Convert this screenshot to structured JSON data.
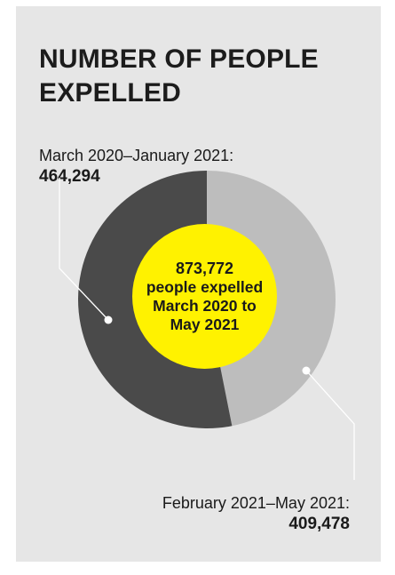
{
  "title": "NUMBER OF PEOPLE EXPELLED",
  "colors": {
    "panel": "#e6e6e6",
    "seg_first": "#4a4a4a",
    "seg_second": "#bdbdbd",
    "center": "#fff200",
    "text": "#1c1c1c"
  },
  "chart_data": {
    "type": "pie",
    "title": "NUMBER OF PEOPLE EXPELLED",
    "donut": true,
    "slices": [
      {
        "label": "March 2020–January 2021:",
        "value": 464294,
        "value_text": "464,294",
        "color": "#4a4a4a"
      },
      {
        "label": "February 2021–May 2021:",
        "value": 409478,
        "value_text": "409,478",
        "color": "#bdbdbd"
      }
    ],
    "center_text": {
      "line1": "873,772",
      "line2": "people expelled",
      "line3": "March 2020 to",
      "line4": "May 2021"
    }
  }
}
